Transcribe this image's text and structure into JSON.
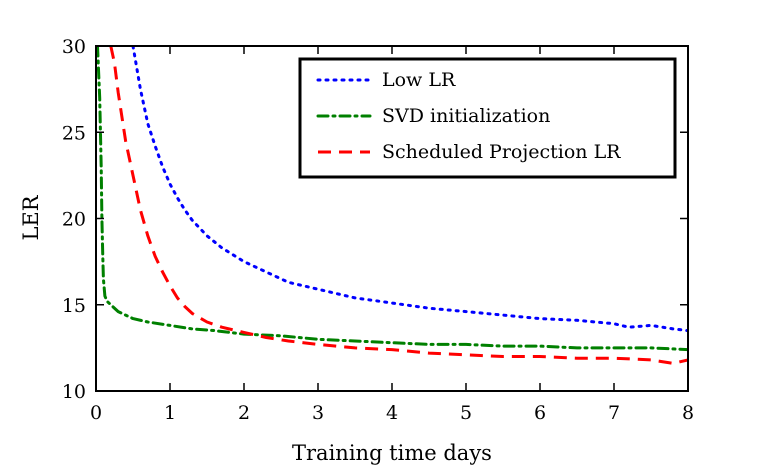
{
  "chart_data": {
    "type": "line",
    "title": "",
    "xlabel": "Training time days",
    "ylabel": "LER",
    "xlim": [
      0,
      8
    ],
    "ylim": [
      10,
      30
    ],
    "xticks": [
      0,
      1,
      2,
      3,
      4,
      5,
      6,
      7,
      8
    ],
    "yticks": [
      10,
      15,
      20,
      25,
      30
    ],
    "xtick_labels": [
      "0",
      "1",
      "2",
      "3",
      "4",
      "5",
      "6",
      "7",
      "8"
    ],
    "ytick_labels": [
      "10",
      "15",
      "20",
      "25",
      "30"
    ],
    "grid": false,
    "legend_position": "top-right",
    "series": [
      {
        "name": "Low LR",
        "color": "#0000ff",
        "style": "dotted",
        "x": [
          0.5,
          0.6,
          0.7,
          0.8,
          0.9,
          1.0,
          1.1,
          1.2,
          1.3,
          1.5,
          1.7,
          2.0,
          2.3,
          2.6,
          3.0,
          3.5,
          4.0,
          4.5,
          5.0,
          5.5,
          6.0,
          6.5,
          7.0,
          7.2,
          7.5,
          7.8,
          8.0
        ],
        "y": [
          30,
          27.5,
          25.5,
          24.2,
          23.0,
          22.0,
          21.2,
          20.5,
          19.9,
          19.0,
          18.3,
          17.5,
          16.9,
          16.3,
          15.9,
          15.4,
          15.1,
          14.8,
          14.6,
          14.4,
          14.2,
          14.1,
          13.9,
          13.7,
          13.8,
          13.6,
          13.5
        ]
      },
      {
        "name": "SVD initialization",
        "color": "#008000",
        "style": "dashdot",
        "x": [
          0.02,
          0.05,
          0.07,
          0.08,
          0.09,
          0.1,
          0.12,
          0.15,
          0.2,
          0.3,
          0.5,
          0.7,
          1.0,
          1.3,
          1.6,
          2.0,
          2.5,
          3.0,
          3.5,
          4.0,
          4.5,
          5.0,
          5.5,
          6.0,
          6.5,
          7.0,
          7.5,
          8.0
        ],
        "y": [
          30,
          27,
          23,
          20,
          18,
          16.5,
          15.5,
          15.2,
          15.0,
          14.6,
          14.2,
          14.0,
          13.8,
          13.6,
          13.5,
          13.3,
          13.2,
          13.0,
          12.9,
          12.8,
          12.7,
          12.7,
          12.6,
          12.6,
          12.5,
          12.5,
          12.5,
          12.4
        ]
      },
      {
        "name": "Scheduled Projection LR",
        "color": "#ff0000",
        "style": "dashed",
        "x": [
          0.2,
          0.25,
          0.3,
          0.4,
          0.5,
          0.6,
          0.7,
          0.8,
          0.9,
          1.0,
          1.1,
          1.2,
          1.3,
          1.5,
          1.7,
          2.0,
          2.3,
          2.6,
          3.0,
          3.5,
          4.0,
          4.5,
          5.0,
          5.5,
          6.0,
          6.5,
          7.0,
          7.5,
          7.8,
          8.0
        ],
        "y": [
          30,
          29,
          27.3,
          24.5,
          22.5,
          20.5,
          19.0,
          17.8,
          16.9,
          16.1,
          15.4,
          14.9,
          14.5,
          14.0,
          13.7,
          13.4,
          13.1,
          12.9,
          12.7,
          12.5,
          12.4,
          12.2,
          12.1,
          12.0,
          12.0,
          11.9,
          11.9,
          11.8,
          11.6,
          11.8
        ]
      }
    ]
  }
}
